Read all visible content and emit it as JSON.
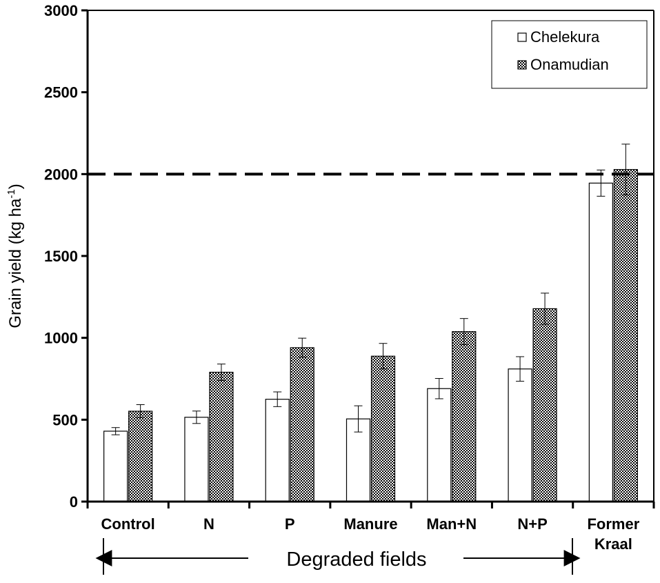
{
  "chart_data": {
    "type": "bar",
    "title": "",
    "xlabel": "",
    "ylabel": "Grain yield (kg ha",
    "ylabel_superscript": "-1",
    "ylabel_close": ")",
    "ylim": [
      0,
      3000
    ],
    "yticks": [
      0,
      500,
      1000,
      1500,
      2000,
      2500,
      3000
    ],
    "ytick_labels": [
      "0",
      "500",
      "1000",
      "1500",
      "2000",
      "2500",
      "3000"
    ],
    "reference_line": 2000,
    "categories": [
      [
        "Control"
      ],
      [
        "N"
      ],
      [
        "P"
      ],
      [
        "Manure"
      ],
      [
        "Man+N"
      ],
      [
        "N+P"
      ],
      [
        "Former",
        "Kraal"
      ]
    ],
    "series": [
      {
        "name": "Chelekura",
        "fill": "#ffffff",
        "values": [
          430,
          515,
          625,
          505,
          690,
          810,
          1945
        ],
        "errors": [
          22,
          38,
          45,
          80,
          62,
          75,
          80
        ]
      },
      {
        "name": "Onamudian",
        "fill": "#d9d9d9",
        "values": [
          552,
          790,
          940,
          888,
          1038,
          1178,
          2028
        ],
        "errors": [
          40,
          50,
          58,
          78,
          80,
          95,
          155
        ]
      }
    ],
    "legend_position": "top-right",
    "bracket_label": "Degraded fields"
  },
  "colors": {
    "axis": "#000000",
    "bar_stroke": "#000000",
    "pattern_dot": "#000000"
  }
}
